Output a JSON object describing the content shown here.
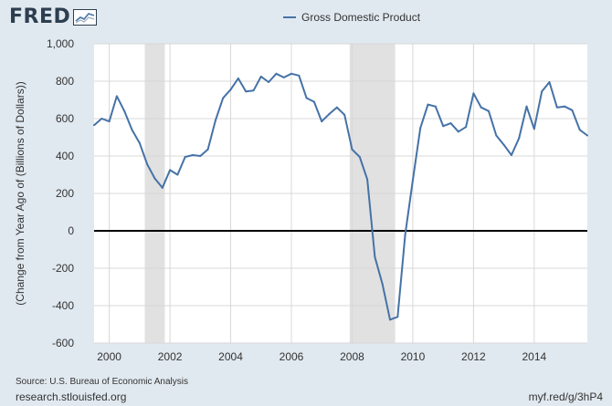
{
  "brand": {
    "logo_text": "FRED",
    "logo_icon": "fred-graph-icon"
  },
  "legend": {
    "series_label": "Gross Domestic Product",
    "color": "#4572a7"
  },
  "footer": {
    "source": "Source: U.S. Bureau of Economic Analysis",
    "url": "research.stlouisfed.org",
    "short_link": "myf.red/g/3hP4"
  },
  "chart_data": {
    "type": "line",
    "title": "",
    "ylabel": "(Change from Year Ago of (Billions of Dollars))",
    "xlabel": "",
    "xlim": [
      1999.5,
      2015.75
    ],
    "ylim": [
      -600,
      1000
    ],
    "y_ticks": [
      -600,
      -400,
      -200,
      0,
      200,
      400,
      600,
      800,
      1000
    ],
    "y_tick_labels": [
      "-600",
      "-400",
      "-200",
      "0",
      "200",
      "400",
      "600",
      "800",
      "1,000"
    ],
    "x_ticks": [
      2000,
      2002,
      2004,
      2006,
      2008,
      2010,
      2012,
      2014
    ],
    "x_tick_labels": [
      "2000",
      "2002",
      "2004",
      "2006",
      "2008",
      "2010",
      "2012",
      "2014"
    ],
    "grid": true,
    "zero_line": true,
    "recessions": [
      [
        2001.17,
        2001.83
      ],
      [
        2007.92,
        2009.42
      ]
    ],
    "recession_color": "#e1e1e1",
    "series": [
      {
        "name": "Gross Domestic Product",
        "color": "#4572a7",
        "x": [
          1999.5,
          1999.75,
          2000.0,
          2000.25,
          2000.5,
          2000.75,
          2001.0,
          2001.25,
          2001.5,
          2001.75,
          2002.0,
          2002.25,
          2002.5,
          2002.75,
          2003.0,
          2003.25,
          2003.5,
          2003.75,
          2004.0,
          2004.25,
          2004.5,
          2004.75,
          2005.0,
          2005.25,
          2005.5,
          2005.75,
          2006.0,
          2006.25,
          2006.5,
          2006.75,
          2007.0,
          2007.25,
          2007.5,
          2007.75,
          2008.0,
          2008.25,
          2008.5,
          2008.75,
          2009.0,
          2009.25,
          2009.5,
          2009.75,
          2010.0,
          2010.25,
          2010.5,
          2010.75,
          2011.0,
          2011.25,
          2011.5,
          2011.75,
          2012.0,
          2012.25,
          2012.5,
          2012.75,
          2013.0,
          2013.25,
          2013.5,
          2013.75,
          2014.0,
          2014.25,
          2014.5,
          2014.75,
          2015.0,
          2015.25,
          2015.5,
          2015.75
        ],
        "y": [
          565,
          600,
          585,
          720,
          640,
          540,
          470,
          355,
          280,
          230,
          325,
          300,
          395,
          405,
          400,
          435,
          590,
          710,
          755,
          815,
          745,
          750,
          825,
          795,
          840,
          820,
          840,
          830,
          710,
          690,
          585,
          625,
          660,
          620,
          435,
          395,
          275,
          -140,
          -285,
          -475,
          -460,
          -20,
          270,
          550,
          675,
          665,
          560,
          575,
          530,
          555,
          735,
          660,
          640,
          510,
          460,
          405,
          495,
          665,
          545,
          745,
          795,
          660,
          665,
          645,
          540,
          510
        ]
      }
    ]
  }
}
